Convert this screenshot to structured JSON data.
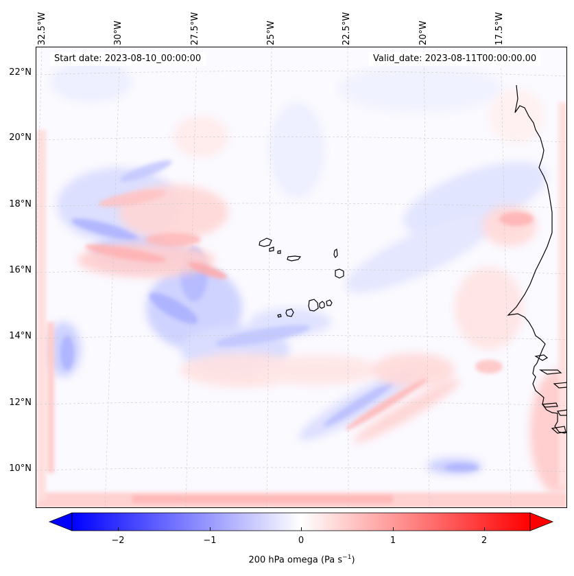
{
  "header": {
    "start_date": "Start date: 2023-08-10_00:00:00",
    "valid_date": "Valid_date: 2023-08-11T00:00:00.00"
  },
  "longitude_labels": [
    "32.5°W",
    "30°W",
    "27.5°W",
    "25°W",
    "22.5°W",
    "20°W",
    "17.5°W"
  ],
  "latitude_labels": [
    "22°N",
    "20°N",
    "18°N",
    "16°N",
    "14°N",
    "12°N",
    "10°N"
  ],
  "colorbar": {
    "ticks": [
      "−2",
      "−1",
      "0",
      "1",
      "2"
    ],
    "range": [
      -2.5,
      2.5
    ],
    "label_prefix": "200 hPa omega (Pa s",
    "label_exp": "−1",
    "label_suffix": ")",
    "color_min": "#0000ff",
    "color_mid": "#ffffff",
    "color_max": "#ff0000"
  },
  "map": {
    "field": "200 hPa omega",
    "colormap": "bwr",
    "coastline_color": "#000000",
    "gridline_color": "#c8c8c8"
  }
}
